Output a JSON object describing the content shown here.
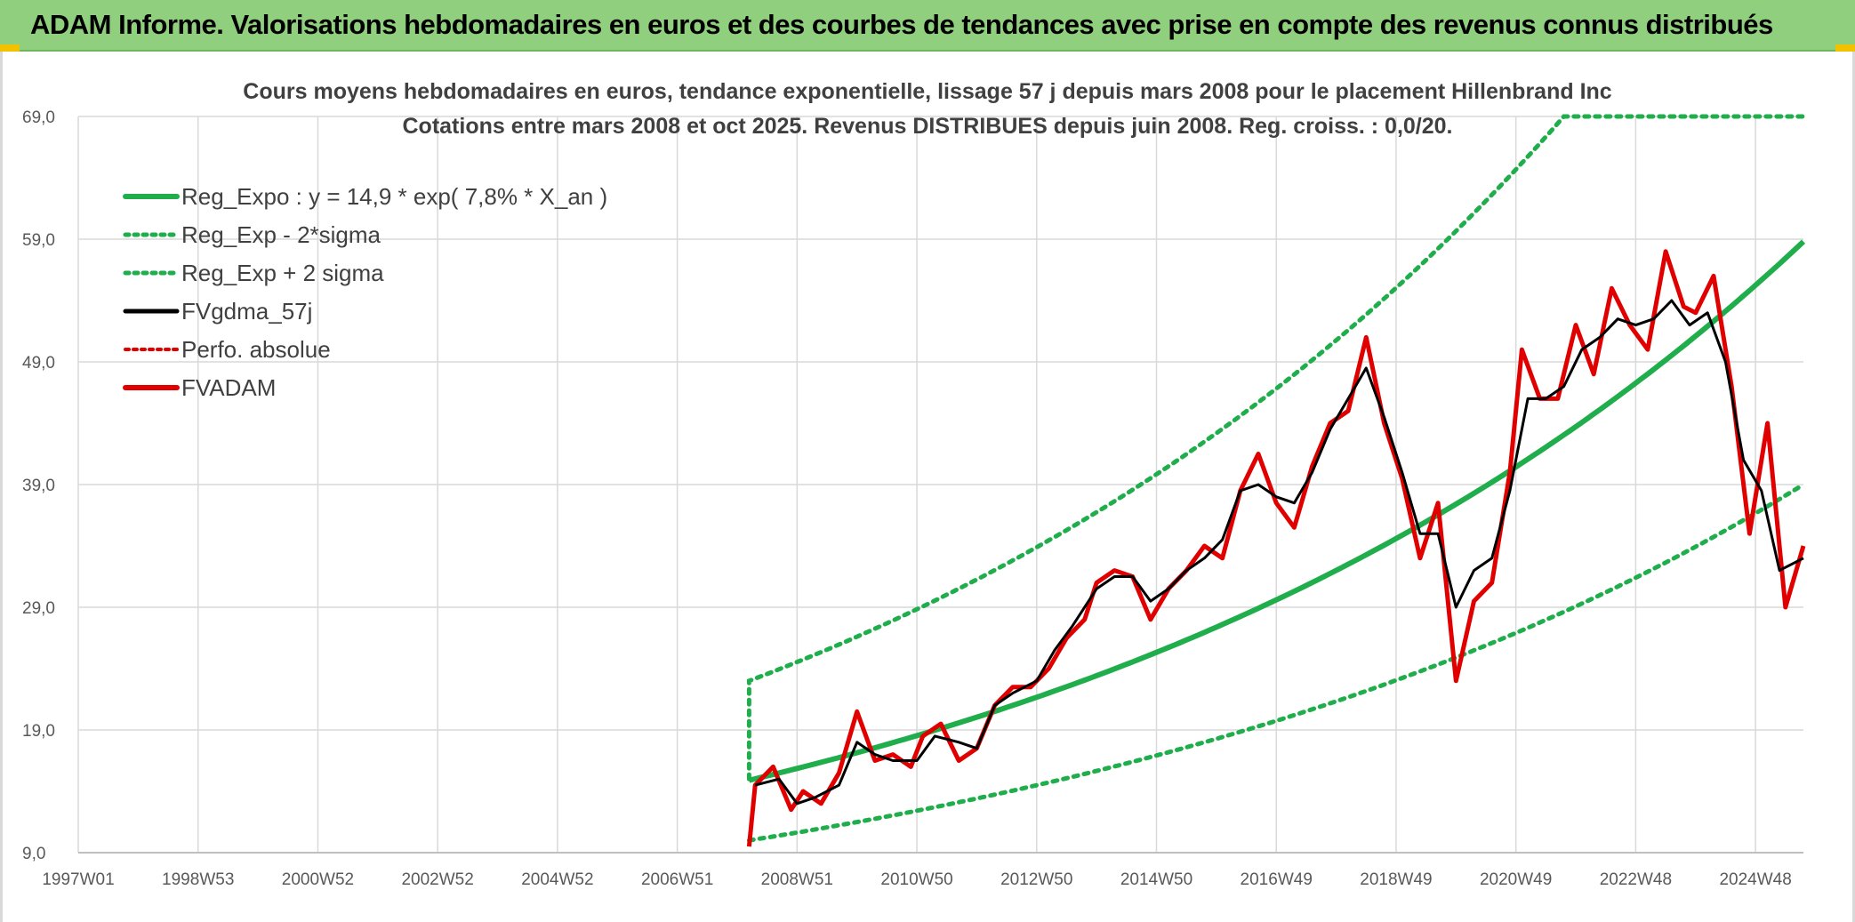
{
  "header": {
    "title": "ADAM Informe. Valorisations hebdomadaires en euros et des courbes de tendances avec prise en compte des revenus connus distribués"
  },
  "colors": {
    "header_bg": "#8fcf7d",
    "reg_expo": "#1fae4b",
    "sigma_band": "#1fae4b",
    "fvgdma": "#000000",
    "perfo": "#e00000",
    "fvadam": "#e00000",
    "grid": "#d9d9d9"
  },
  "chart_data": {
    "type": "line",
    "title_lines": [
      "Cours moyens hebdomadaires en euros, tendance exponentielle, lissage 57 j depuis mars 2008 pour le placement Hillenbrand Inc",
      "Cotations entre mars 2008 et oct 2025. Revenus DISTRIBUES depuis juin 2008. Reg. croiss. : 0,0/20."
    ],
    "x_tick_labels": [
      "1997W01",
      "1998W53",
      "2000W52",
      "2002W52",
      "2004W52",
      "2006W51",
      "2008W51",
      "2010W50",
      "2012W50",
      "2014W50",
      "2016W49",
      "2018W49",
      "2020W49",
      "2022W48",
      "2024W48"
    ],
    "x_tick_years": [
      1997.0,
      1999.0,
      2001.0,
      2003.0,
      2005.0,
      2007.0,
      2009.0,
      2011.0,
      2013.0,
      2015.0,
      2017.0,
      2019.0,
      2021.0,
      2023.0,
      2025.0
    ],
    "x_range": [
      1997.0,
      2025.8
    ],
    "y_ticks": [
      "9,0",
      "19,0",
      "29,0",
      "39,0",
      "49,0",
      "59,0",
      "69,0"
    ],
    "y_tick_values": [
      9,
      19,
      29,
      39,
      49,
      59,
      69
    ],
    "ylim": [
      9,
      69
    ],
    "grid": true,
    "legend_position": "top-left",
    "legend": [
      {
        "label": "Reg_Expo : y = 14,9 * exp( 7,8% *  X_an )",
        "style": "solid-green"
      },
      {
        "label": "Reg_Exp - 2*sigma",
        "style": "dotted-green"
      },
      {
        "label": "Reg_Exp + 2 sigma",
        "style": "dotted-green"
      },
      {
        "label": "FVgdma_57j",
        "style": "solid-black"
      },
      {
        "label": "Perfo. absolue",
        "style": "dotted-red"
      },
      {
        "label": "FVADAM",
        "style": "solid-red"
      }
    ],
    "regression": {
      "a": 14.9,
      "rate": 0.078,
      "start_year": 2008.2,
      "end_year": 2025.8
    },
    "lower_band": {
      "x": [
        2008.2,
        2025.8
      ],
      "y": [
        10.0,
        39.0
      ]
    },
    "upper_band": {
      "x": [
        2008.2,
        2008.2,
        2021.8,
        2025.8
      ],
      "y": [
        15.0,
        23.0,
        69.0,
        69.0
      ]
    },
    "fvadam": {
      "x": [
        2008.2,
        2008.3,
        2008.6,
        2008.9,
        2009.1,
        2009.4,
        2009.7,
        2010.0,
        2010.3,
        2010.6,
        2010.9,
        2011.1,
        2011.4,
        2011.7,
        2012.0,
        2012.3,
        2012.6,
        2012.9,
        2013.2,
        2013.5,
        2013.8,
        2014.0,
        2014.3,
        2014.6,
        2014.9,
        2015.2,
        2015.5,
        2015.8,
        2016.1,
        2016.4,
        2016.7,
        2017.0,
        2017.3,
        2017.6,
        2017.9,
        2018.2,
        2018.5,
        2018.8,
        2019.1,
        2019.4,
        2019.7,
        2020.0,
        2020.3,
        2020.6,
        2020.9,
        2021.1,
        2021.4,
        2021.7,
        2022.0,
        2022.3,
        2022.6,
        2022.9,
        2023.2,
        2023.5,
        2023.8,
        2024.0,
        2024.3,
        2024.6,
        2024.9,
        2025.2,
        2025.5,
        2025.8
      ],
      "y": [
        9.5,
        14.5,
        16.0,
        12.5,
        14.0,
        13.0,
        15.5,
        20.5,
        16.5,
        17.0,
        16.0,
        18.5,
        19.5,
        16.5,
        17.5,
        21.0,
        22.5,
        22.5,
        24.0,
        26.5,
        28.0,
        31.0,
        32.0,
        31.5,
        28.0,
        30.5,
        32.0,
        34.0,
        33.0,
        38.5,
        41.5,
        37.5,
        35.5,
        40.5,
        44.0,
        45.0,
        51.0,
        44.0,
        39.5,
        33.0,
        37.5,
        23.0,
        29.5,
        31.0,
        40.0,
        50.0,
        46.0,
        46.0,
        52.0,
        48.0,
        55.0,
        52.0,
        50.0,
        58.0,
        53.5,
        53.0,
        56.0,
        47.0,
        35.0,
        44.0,
        29.0,
        34.0
      ]
    },
    "fvgdma": {
      "x": [
        2008.3,
        2008.7,
        2009.0,
        2009.3,
        2009.7,
        2010.0,
        2010.3,
        2010.6,
        2011.0,
        2011.3,
        2011.7,
        2012.0,
        2012.3,
        2012.6,
        2013.0,
        2013.3,
        2013.6,
        2014.0,
        2014.3,
        2014.6,
        2014.9,
        2015.2,
        2015.5,
        2015.8,
        2016.1,
        2016.4,
        2016.7,
        2017.0,
        2017.3,
        2017.6,
        2017.9,
        2018.2,
        2018.5,
        2018.8,
        2019.1,
        2019.4,
        2019.7,
        2020.0,
        2020.3,
        2020.6,
        2020.9,
        2021.2,
        2021.5,
        2021.8,
        2022.1,
        2022.4,
        2022.7,
        2023.0,
        2023.3,
        2023.6,
        2023.9,
        2024.2,
        2024.5,
        2024.8,
        2025.1,
        2025.4,
        2025.8
      ],
      "y": [
        14.5,
        15.0,
        13.0,
        13.5,
        14.5,
        18.0,
        17.0,
        16.5,
        16.5,
        18.5,
        18.0,
        17.5,
        21.0,
        22.0,
        23.0,
        25.5,
        27.5,
        30.5,
        31.5,
        31.5,
        29.5,
        30.5,
        32.0,
        33.0,
        34.5,
        38.5,
        39.0,
        38.0,
        37.5,
        40.0,
        43.5,
        46.0,
        48.5,
        44.5,
        40.0,
        35.0,
        35.0,
        29.0,
        32.0,
        33.0,
        38.5,
        46.0,
        46.0,
        47.0,
        50.0,
        51.0,
        52.5,
        52.0,
        52.5,
        54.0,
        52.0,
        53.0,
        49.0,
        41.0,
        38.5,
        32.0,
        33.0
      ]
    }
  }
}
